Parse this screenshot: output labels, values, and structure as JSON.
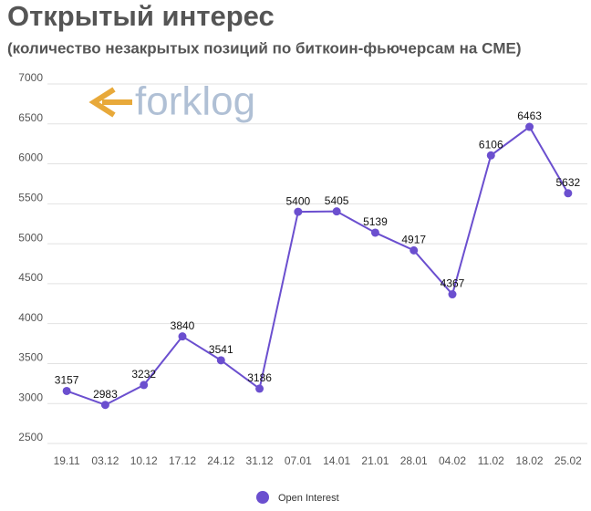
{
  "chart_data": {
    "type": "line",
    "title": "Открытый интерес",
    "subtitle": "(количество незакрытых позиций по биткоин-фьючерсам на CME)",
    "watermark": "forklog",
    "categories": [
      "19.11",
      "03.12",
      "10.12",
      "17.12",
      "24.12",
      "31.12",
      "07.01",
      "14.01",
      "21.01",
      "28.01",
      "04.02",
      "11.02",
      "18.02",
      "25.02"
    ],
    "series": [
      {
        "name": "Open Interest",
        "color": "#6b4fcf",
        "values": [
          3157,
          2983,
          3232,
          3840,
          3541,
          3186,
          5400,
          5405,
          5139,
          4917,
          4367,
          6106,
          6463,
          5632
        ]
      }
    ],
    "ylim": [
      2500,
      7000
    ],
    "yticks": [
      2500,
      3000,
      3500,
      4000,
      4500,
      5000,
      5500,
      6000,
      6500,
      7000
    ],
    "grid": true,
    "legend": "bottom"
  }
}
